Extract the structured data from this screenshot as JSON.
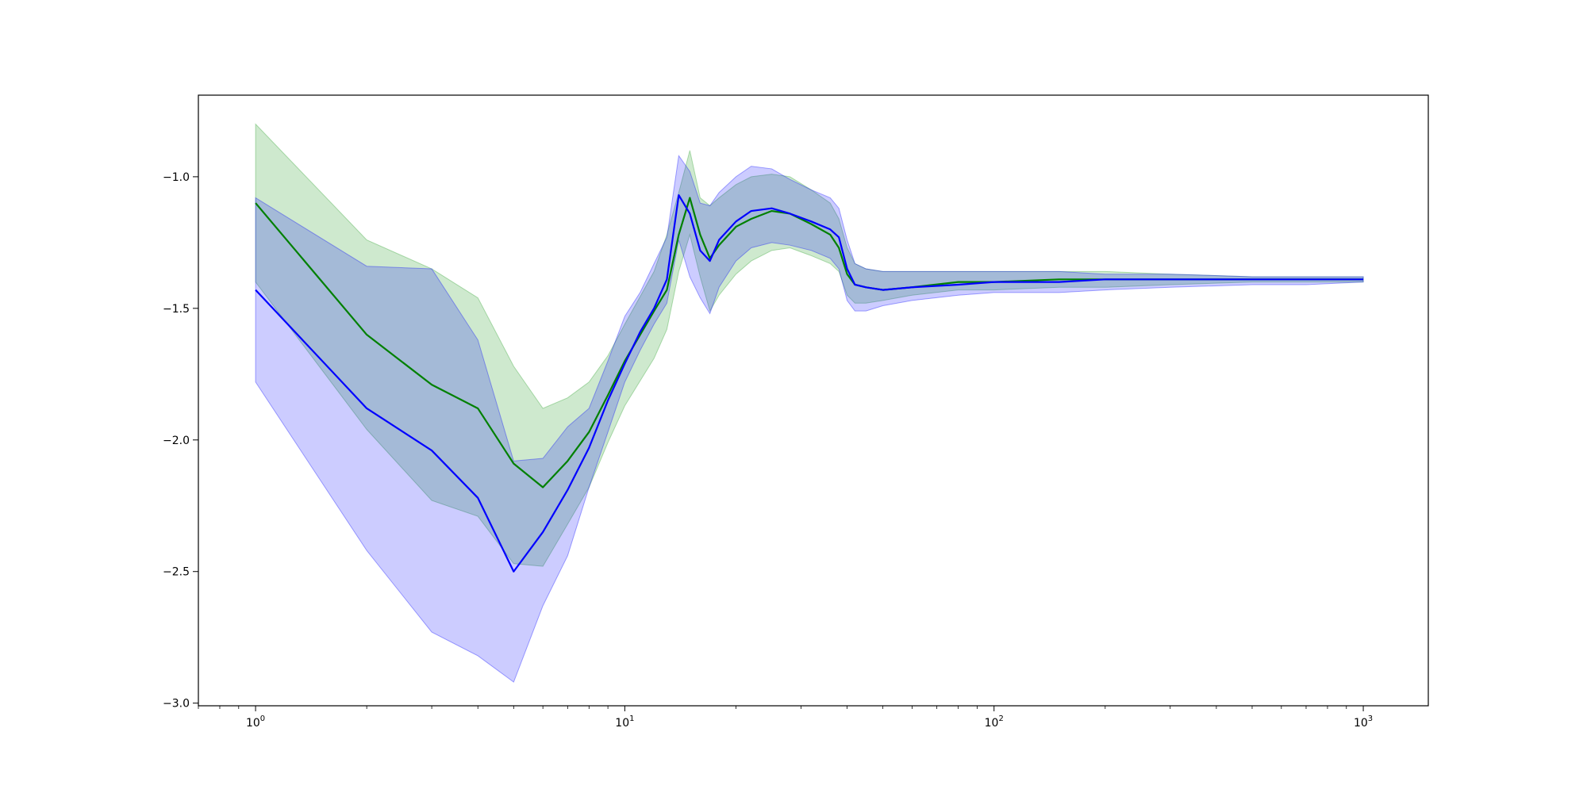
{
  "chart_data": {
    "type": "line",
    "title": "",
    "xlabel": "",
    "ylabel": "",
    "x_scale": "log",
    "xlim": [
      0.7,
      1500
    ],
    "ylim": [
      -3.01,
      -0.69
    ],
    "grid": false,
    "legend": "none",
    "x_ticks": [
      {
        "value": 1,
        "base": "10",
        "exp": "0"
      },
      {
        "value": 10,
        "base": "10",
        "exp": "1"
      },
      {
        "value": 100,
        "base": "10",
        "exp": "2"
      },
      {
        "value": 1000,
        "base": "10",
        "exp": "3"
      }
    ],
    "y_ticks": [
      {
        "value": -1.0,
        "label": "−1.0"
      },
      {
        "value": -1.5,
        "label": "−1.5"
      },
      {
        "value": -2.0,
        "label": "−2.0"
      },
      {
        "value": -2.5,
        "label": "−2.5"
      },
      {
        "value": -3.0,
        "label": "−3.0"
      }
    ],
    "series": [
      {
        "color": "#008000",
        "band_color": "#2ca02c",
        "band_opacity": 0.23,
        "x": [
          1,
          2,
          3,
          4,
          5,
          6,
          7,
          8,
          9,
          10,
          12,
          13,
          14,
          15,
          16,
          17,
          18,
          20,
          22,
          25,
          28,
          32,
          36,
          38,
          40,
          42,
          45,
          50,
          60,
          80,
          100,
          150,
          200,
          300,
          500,
          700,
          1000
        ],
        "y": [
          -1.1,
          -1.6,
          -1.79,
          -1.88,
          -2.09,
          -2.18,
          -2.08,
          -1.97,
          -1.83,
          -1.7,
          -1.51,
          -1.43,
          -1.22,
          -1.08,
          -1.22,
          -1.31,
          -1.26,
          -1.19,
          -1.16,
          -1.13,
          -1.14,
          -1.18,
          -1.22,
          -1.27,
          -1.37,
          -1.41,
          -1.42,
          -1.43,
          -1.42,
          -1.4,
          -1.4,
          -1.39,
          -1.39,
          -1.39,
          -1.39,
          -1.39,
          -1.39
        ],
        "y_low": [
          -1.4,
          -1.96,
          -2.23,
          -2.29,
          -2.47,
          -2.48,
          -2.32,
          -2.18,
          -2.01,
          -1.87,
          -1.69,
          -1.58,
          -1.36,
          -1.22,
          -1.38,
          -1.51,
          -1.45,
          -1.37,
          -1.32,
          -1.28,
          -1.27,
          -1.3,
          -1.33,
          -1.36,
          -1.45,
          -1.48,
          -1.48,
          -1.47,
          -1.45,
          -1.43,
          -1.43,
          -1.42,
          -1.42,
          -1.41,
          -1.4,
          -1.4,
          -1.4
        ],
        "y_high": [
          -0.8,
          -1.24,
          -1.35,
          -1.46,
          -1.72,
          -1.88,
          -1.84,
          -1.78,
          -1.68,
          -1.56,
          -1.36,
          -1.22,
          -1.06,
          -0.9,
          -1.08,
          -1.11,
          -1.08,
          -1.03,
          -1.0,
          -0.99,
          -1.0,
          -1.05,
          -1.1,
          -1.16,
          -1.27,
          -1.33,
          -1.35,
          -1.36,
          -1.36,
          -1.36,
          -1.36,
          -1.36,
          -1.36,
          -1.37,
          -1.38,
          -1.38,
          -1.38
        ]
      },
      {
        "color": "#0000ff",
        "band_color": "#0000ff",
        "band_opacity": 0.2,
        "x": [
          1,
          2,
          3,
          4,
          5,
          6,
          7,
          8,
          9,
          10,
          11,
          12,
          13,
          14,
          15,
          16,
          17,
          18,
          20,
          22,
          25,
          28,
          32,
          36,
          38,
          40,
          42,
          45,
          50,
          60,
          80,
          100,
          150,
          200,
          300,
          500,
          700,
          1000
        ],
        "y": [
          -1.43,
          -1.88,
          -2.04,
          -2.22,
          -2.5,
          -2.35,
          -2.19,
          -2.03,
          -1.85,
          -1.71,
          -1.59,
          -1.5,
          -1.39,
          -1.07,
          -1.14,
          -1.28,
          -1.32,
          -1.24,
          -1.17,
          -1.13,
          -1.12,
          -1.14,
          -1.17,
          -1.2,
          -1.23,
          -1.35,
          -1.41,
          -1.42,
          -1.43,
          -1.42,
          -1.41,
          -1.4,
          -1.4,
          -1.39,
          -1.39,
          -1.39,
          -1.39,
          -1.39
        ],
        "y_low": [
          -1.78,
          -2.42,
          -2.73,
          -2.82,
          -2.92,
          -2.63,
          -2.44,
          -2.18,
          -1.97,
          -1.78,
          -1.66,
          -1.56,
          -1.48,
          -1.24,
          -1.38,
          -1.46,
          -1.52,
          -1.42,
          -1.32,
          -1.27,
          -1.25,
          -1.26,
          -1.28,
          -1.31,
          -1.35,
          -1.47,
          -1.51,
          -1.51,
          -1.49,
          -1.47,
          -1.45,
          -1.44,
          -1.44,
          -1.43,
          -1.42,
          -1.41,
          -1.41,
          -1.4
        ],
        "y_high": [
          -1.08,
          -1.34,
          -1.35,
          -1.62,
          -2.08,
          -2.07,
          -1.95,
          -1.88,
          -1.7,
          -1.53,
          -1.44,
          -1.33,
          -1.23,
          -0.92,
          -0.98,
          -1.1,
          -1.11,
          -1.06,
          -1.0,
          -0.96,
          -0.97,
          -1.01,
          -1.05,
          -1.08,
          -1.12,
          -1.24,
          -1.33,
          -1.35,
          -1.36,
          -1.36,
          -1.36,
          -1.36,
          -1.36,
          -1.37,
          -1.37,
          -1.38,
          -1.38,
          -1.38
        ]
      }
    ]
  }
}
